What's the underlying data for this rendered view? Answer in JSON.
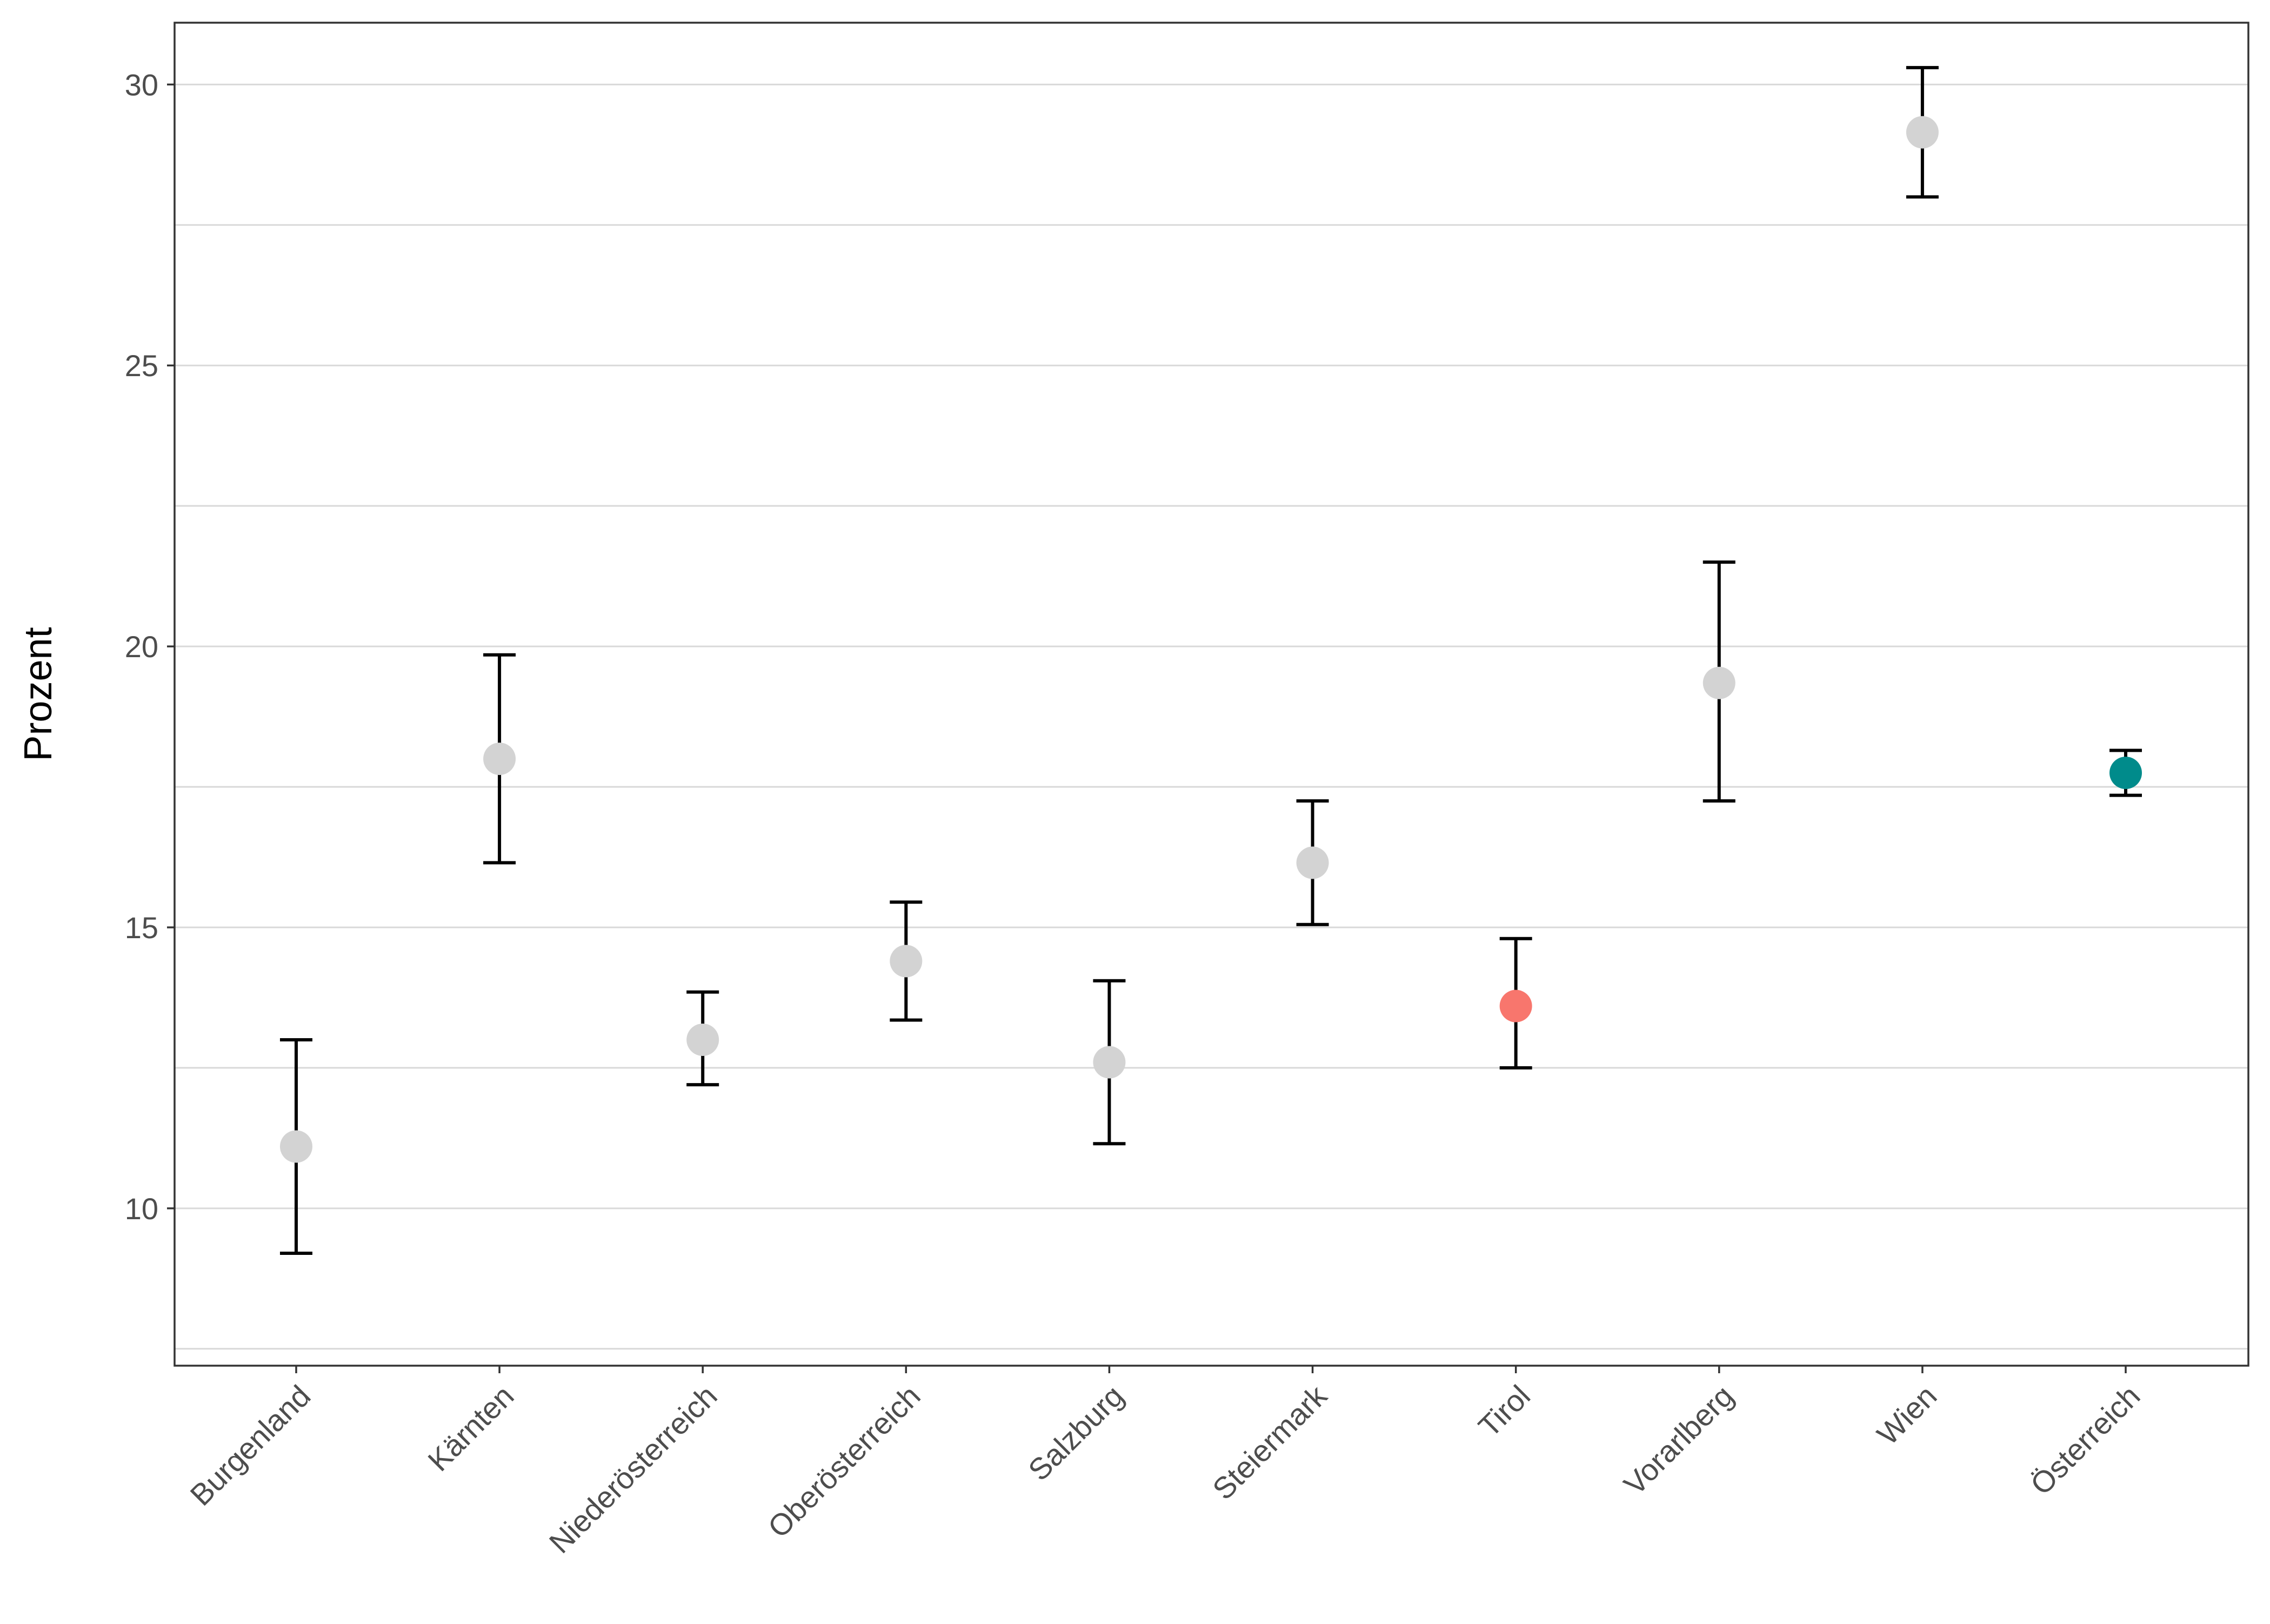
{
  "chart_data": {
    "type": "scatter",
    "subtype": "point-with-error-bars",
    "title": "",
    "xlabel": "",
    "ylabel": "Prozent",
    "ylim": [
      7.2,
      31.1
    ],
    "y_ticks": [
      10,
      15,
      20,
      25,
      30
    ],
    "y_ticks_labels": [
      "10",
      "15",
      "20",
      "25",
      "30"
    ],
    "grid": "horizontal major and minor lines",
    "legend": "none",
    "categories": [
      "Burgenland",
      "Kärnten",
      "Niederösterreich",
      "Oberösterreich",
      "Salzburg",
      "Steiermark",
      "Tirol",
      "Vorarlberg",
      "Wien",
      "Österreich"
    ],
    "values": [
      11.1,
      18.0,
      13.0,
      14.4,
      12.6,
      16.15,
      13.6,
      19.35,
      29.15,
      17.75
    ],
    "ci_lower": [
      9.2,
      16.15,
      12.2,
      13.35,
      11.15,
      15.05,
      12.5,
      17.25,
      28.0,
      17.35
    ],
    "ci_upper": [
      13.0,
      19.85,
      13.85,
      15.45,
      14.05,
      17.25,
      14.8,
      21.5,
      30.3,
      18.15
    ],
    "point_colors": [
      "#d3d3d3",
      "#d3d3d3",
      "#d3d3d3",
      "#d3d3d3",
      "#d3d3d3",
      "#d3d3d3",
      "#f8766d",
      "#d3d3d3",
      "#d3d3d3",
      "#008b8b"
    ],
    "colors": {
      "default_point": "#d3d3d3",
      "highlight_point": "#f8766d",
      "total_point": "#008b8b",
      "error_bar": "#000000",
      "grid": "#d9d9d9",
      "border": "#333333"
    }
  }
}
